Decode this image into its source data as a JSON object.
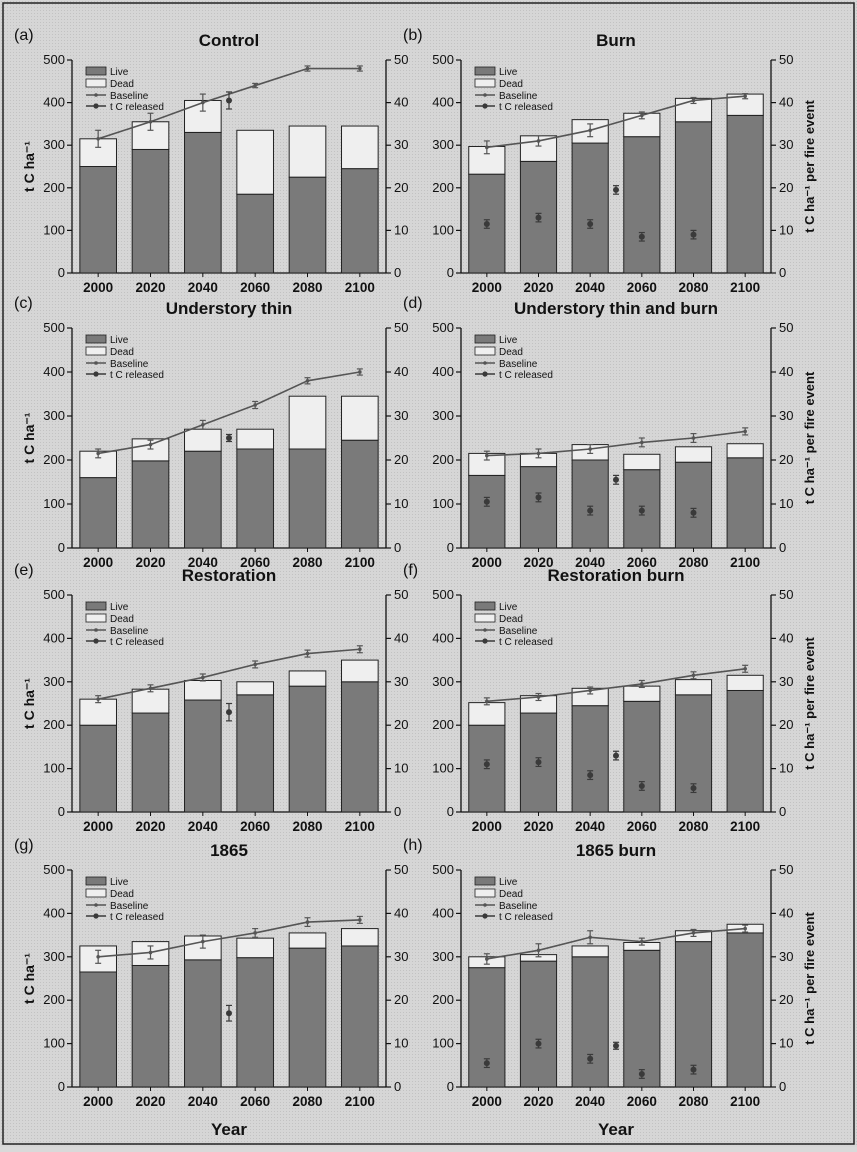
{
  "colors": {
    "live": "#7a7a7a",
    "dead": "#efefef",
    "line": "#555555",
    "marker": "#3a3a3a"
  },
  "axis_labels": {
    "y_left": "t C ha⁻¹",
    "y_right": "t C ha⁻¹ per fire event",
    "x": "Year"
  },
  "legend_labels": [
    "Live",
    "Dead",
    "Baseline",
    "t C released"
  ],
  "chart_data": [
    {
      "panel": "(a)",
      "title": "Control",
      "type": "bar",
      "categories": [
        "2000",
        "2020",
        "2040",
        "2060",
        "2080",
        "2100"
      ],
      "ylim": [
        0,
        500
      ],
      "yticks": [
        0,
        100,
        200,
        300,
        400,
        500
      ],
      "y2lim": [
        0,
        50
      ],
      "y2ticks": [
        0,
        10,
        20,
        30,
        40,
        50
      ],
      "y2label": "",
      "series": [
        {
          "name": "Live",
          "values": [
            250,
            290,
            330,
            185,
            225,
            245
          ]
        },
        {
          "name": "Dead",
          "values": [
            65,
            65,
            75,
            150,
            120,
            100
          ]
        }
      ],
      "baseline": {
        "name": "Baseline",
        "x": [
          "2000",
          "2020",
          "2040",
          "2060",
          "2080",
          "2100"
        ],
        "values": [
          31.5,
          35.5,
          40,
          44,
          48,
          48
        ],
        "err": [
          2,
          2,
          2,
          0.5,
          0.6,
          0.6
        ]
      },
      "released": {
        "name": "t C released",
        "x": [
          2050
        ],
        "values": [
          40.5
        ],
        "err": [
          2
        ]
      }
    },
    {
      "panel": "(b)",
      "title": "Burn",
      "type": "bar",
      "categories": [
        "2000",
        "2020",
        "2040",
        "2060",
        "2080",
        "2100"
      ],
      "ylim": [
        0,
        500
      ],
      "yticks": [
        0,
        100,
        200,
        300,
        400,
        500
      ],
      "y2lim": [
        0,
        50
      ],
      "y2ticks": [
        0,
        10,
        20,
        30,
        40,
        50
      ],
      "y2label": "t C ha⁻¹ per fire event",
      "series": [
        {
          "name": "Live",
          "values": [
            232,
            262,
            305,
            320,
            355,
            370
          ]
        },
        {
          "name": "Dead",
          "values": [
            65,
            60,
            55,
            55,
            55,
            50
          ]
        }
      ],
      "baseline": {
        "name": "Baseline",
        "x": [
          "2000",
          "2020",
          "2040",
          "2060",
          "2080",
          "2100"
        ],
        "values": [
          29.5,
          31,
          33.5,
          37,
          40.5,
          41.5
        ],
        "err": [
          1.5,
          1.2,
          1.5,
          0.8,
          0.7,
          0.6
        ]
      },
      "released": {
        "name": "t C released",
        "x": [
          2000,
          2020,
          2040,
          2050,
          2060,
          2080
        ],
        "values": [
          11.5,
          13,
          11.5,
          19.5,
          8.5,
          9
        ],
        "err": [
          1,
          1,
          1,
          1,
          1,
          1
        ]
      }
    },
    {
      "panel": "(c)",
      "title": "Understory thin",
      "type": "bar",
      "categories": [
        "2000",
        "2020",
        "2040",
        "2060",
        "2080",
        "2100"
      ],
      "ylim": [
        0,
        500
      ],
      "yticks": [
        0,
        100,
        200,
        300,
        400,
        500
      ],
      "y2lim": [
        0,
        50
      ],
      "y2ticks": [
        0,
        10,
        20,
        30,
        40,
        50
      ],
      "y2label": "",
      "series": [
        {
          "name": "Live",
          "values": [
            160,
            198,
            220,
            225,
            225,
            245
          ]
        },
        {
          "name": "Dead",
          "values": [
            60,
            50,
            50,
            45,
            120,
            100
          ]
        }
      ],
      "baseline": {
        "name": "Baseline",
        "x": [
          "2000",
          "2020",
          "2040",
          "2060",
          "2080",
          "2100"
        ],
        "values": [
          21.5,
          23.5,
          28,
          32.5,
          38,
          40
        ],
        "err": [
          1,
          1,
          1,
          0.8,
          0.7,
          0.7
        ]
      },
      "released": {
        "name": "t C released",
        "x": [
          2050
        ],
        "values": [
          25
        ],
        "err": [
          0.8
        ]
      }
    },
    {
      "panel": "(d)",
      "title": "Understory thin and burn",
      "type": "bar",
      "categories": [
        "2000",
        "2020",
        "2040",
        "2060",
        "2080",
        "2100"
      ],
      "ylim": [
        0,
        500
      ],
      "yticks": [
        0,
        100,
        200,
        300,
        400,
        500
      ],
      "y2lim": [
        0,
        50
      ],
      "y2ticks": [
        0,
        10,
        20,
        30,
        40,
        50
      ],
      "y2label": "t C ha⁻¹ per fire event",
      "series": [
        {
          "name": "Live",
          "values": [
            165,
            185,
            200,
            178,
            195,
            205
          ]
        },
        {
          "name": "Dead",
          "values": [
            50,
            30,
            35,
            35,
            35,
            32
          ]
        }
      ],
      "baseline": {
        "name": "Baseline",
        "x": [
          "2000",
          "2020",
          "2040",
          "2060",
          "2080",
          "2100"
        ],
        "values": [
          21,
          21.5,
          22.5,
          24,
          25,
          26.5
        ],
        "err": [
          1,
          1,
          1,
          1,
          1,
          0.8
        ]
      },
      "released": {
        "name": "t C released",
        "x": [
          2000,
          2020,
          2040,
          2050,
          2060,
          2080
        ],
        "values": [
          10.5,
          11.5,
          8.5,
          15.5,
          8.5,
          8
        ],
        "err": [
          1,
          1,
          1,
          1,
          1,
          1
        ]
      }
    },
    {
      "panel": "(e)",
      "title": "Restoration",
      "type": "bar",
      "categories": [
        "2000",
        "2020",
        "2040",
        "2060",
        "2080",
        "2100"
      ],
      "ylim": [
        0,
        500
      ],
      "yticks": [
        0,
        100,
        200,
        300,
        400,
        500
      ],
      "y2lim": [
        0,
        50
      ],
      "y2ticks": [
        0,
        10,
        20,
        30,
        40,
        50
      ],
      "y2label": "",
      "series": [
        {
          "name": "Live",
          "values": [
            200,
            228,
            258,
            270,
            290,
            300
          ]
        },
        {
          "name": "Dead",
          "values": [
            60,
            55,
            45,
            30,
            35,
            50
          ]
        }
      ],
      "baseline": {
        "name": "Baseline",
        "x": [
          "2000",
          "2020",
          "2040",
          "2060",
          "2080",
          "2100"
        ],
        "values": [
          26,
          28.5,
          31,
          34,
          36.5,
          37.5
        ],
        "err": [
          0.8,
          0.8,
          0.8,
          0.8,
          0.8,
          0.8
        ]
      },
      "released": {
        "name": "t C released",
        "x": [
          2050
        ],
        "values": [
          23
        ],
        "err": [
          2
        ]
      }
    },
    {
      "panel": "(f)",
      "title": "Restoration burn",
      "type": "bar",
      "categories": [
        "2000",
        "2020",
        "2040",
        "2060",
        "2080",
        "2100"
      ],
      "ylim": [
        0,
        500
      ],
      "yticks": [
        0,
        100,
        200,
        300,
        400,
        500
      ],
      "y2lim": [
        0,
        50
      ],
      "y2ticks": [
        0,
        10,
        20,
        30,
        40,
        50
      ],
      "y2label": "t C ha⁻¹ per fire event",
      "series": [
        {
          "name": "Live",
          "values": [
            200,
            228,
            245,
            255,
            270,
            280
          ]
        },
        {
          "name": "Dead",
          "values": [
            52,
            40,
            40,
            35,
            35,
            35
          ]
        }
      ],
      "baseline": {
        "name": "Baseline",
        "x": [
          "2000",
          "2020",
          "2040",
          "2060",
          "2080",
          "2100"
        ],
        "values": [
          25.5,
          26.5,
          28,
          29.5,
          31.5,
          33
        ],
        "err": [
          0.8,
          0.8,
          0.8,
          0.8,
          0.8,
          0.8
        ]
      },
      "released": {
        "name": "t C released",
        "x": [
          2000,
          2020,
          2040,
          2050,
          2060,
          2080
        ],
        "values": [
          11,
          11.5,
          8.5,
          13,
          6,
          5.5
        ],
        "err": [
          1,
          1,
          1,
          1,
          1,
          1
        ]
      }
    },
    {
      "panel": "(g)",
      "title": "1865",
      "type": "bar",
      "categories": [
        "2000",
        "2020",
        "2040",
        "2060",
        "2080",
        "2100"
      ],
      "ylim": [
        0,
        500
      ],
      "yticks": [
        0,
        100,
        200,
        300,
        400,
        500
      ],
      "y2lim": [
        0,
        50
      ],
      "y2ticks": [
        0,
        10,
        20,
        30,
        40,
        50
      ],
      "y2label": "",
      "series": [
        {
          "name": "Live",
          "values": [
            265,
            280,
            293,
            298,
            320,
            325
          ]
        },
        {
          "name": "Dead",
          "values": [
            60,
            55,
            55,
            45,
            35,
            40
          ]
        }
      ],
      "baseline": {
        "name": "Baseline",
        "x": [
          "2000",
          "2020",
          "2040",
          "2060",
          "2080",
          "2100"
        ],
        "values": [
          30,
          31,
          33.5,
          35.5,
          38,
          38.5
        ],
        "err": [
          1.5,
          1.5,
          1.5,
          1,
          1,
          0.8
        ]
      },
      "released": {
        "name": "t C released",
        "x": [
          2050
        ],
        "values": [
          17
        ],
        "err": [
          1.8
        ]
      }
    },
    {
      "panel": "(h)",
      "title": "1865 burn",
      "type": "bar",
      "categories": [
        "2000",
        "2020",
        "2040",
        "2060",
        "2080",
        "2100"
      ],
      "ylim": [
        0,
        500
      ],
      "yticks": [
        0,
        100,
        200,
        300,
        400,
        500
      ],
      "y2lim": [
        0,
        50
      ],
      "y2ticks": [
        0,
        10,
        20,
        30,
        40,
        50
      ],
      "y2label": "t C ha⁻¹ per fire event",
      "series": [
        {
          "name": "Live",
          "values": [
            275,
            290,
            300,
            315,
            335,
            355
          ]
        },
        {
          "name": "Dead",
          "values": [
            25,
            15,
            25,
            18,
            25,
            20
          ]
        }
      ],
      "baseline": {
        "name": "Baseline",
        "x": [
          "2000",
          "2020",
          "2040",
          "2060",
          "2080",
          "2100"
        ],
        "values": [
          29.5,
          31.5,
          34.5,
          33.5,
          35.5,
          36.5
        ],
        "err": [
          1.2,
          1.5,
          1.5,
          0.8,
          0.8,
          0.8
        ]
      },
      "released": {
        "name": "t C released",
        "x": [
          2000,
          2020,
          2040,
          2050,
          2060,
          2080
        ],
        "values": [
          5.5,
          10,
          6.5,
          9.5,
          3,
          4
        ],
        "err": [
          1,
          1,
          1,
          0.8,
          1,
          1
        ]
      }
    }
  ]
}
